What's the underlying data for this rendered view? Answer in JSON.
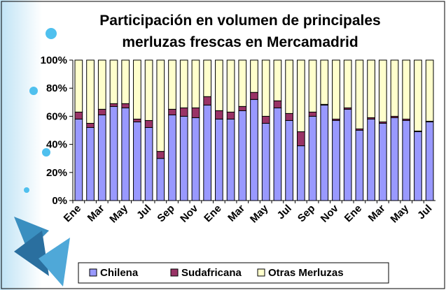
{
  "chart_data": {
    "type": "stacked_bar_100",
    "title": "Participación en volumen de principales merluzas frescas en Mercamadrid",
    "categories": [
      "Ene",
      null,
      "Mar",
      null,
      "May",
      null,
      "Jul",
      null,
      "Sep",
      null,
      "Nov",
      null,
      "Ene",
      null,
      "Mar",
      null,
      "May",
      null,
      "Jul",
      null,
      "Sep",
      null,
      "Nov",
      null,
      "Ene",
      null,
      "Mar",
      null,
      "May",
      null,
      "Jul"
    ],
    "series": [
      {
        "name": "Chilena",
        "color": "#9999ff",
        "values": [
          58,
          52,
          61,
          67,
          66,
          56,
          52,
          30,
          61,
          60,
          59,
          68,
          58,
          58,
          64,
          72,
          55,
          66,
          57,
          39,
          60,
          68,
          57,
          65,
          50,
          58,
          55,
          59,
          57,
          49,
          56
        ]
      },
      {
        "name": "Sudafricana",
        "color": "#993366",
        "values": [
          5,
          3,
          4,
          2,
          3,
          2,
          5,
          5,
          4,
          6,
          7,
          6,
          6,
          5,
          3,
          5,
          5,
          5,
          5,
          10,
          3,
          0.5,
          1,
          1,
          1,
          1,
          1,
          1,
          1,
          0.5,
          0.5
        ]
      },
      {
        "name": "Otras Merluzas",
        "color": "#ffffcc",
        "values": [
          37,
          45,
          35,
          31,
          31,
          42,
          43,
          65,
          35,
          34,
          34,
          26,
          36,
          37,
          33,
          23,
          40,
          29,
          38,
          51,
          37,
          31.5,
          42,
          34,
          49,
          41,
          44,
          40,
          42,
          50.5,
          43.5
        ]
      }
    ],
    "ylim": [
      0,
      100
    ],
    "yticks": [
      {
        "value": 0,
        "label": "0%"
      },
      {
        "value": 20,
        "label": "20%"
      },
      {
        "value": 40,
        "label": "40%"
      },
      {
        "value": 60,
        "label": "60%"
      },
      {
        "value": 80,
        "label": "80%"
      },
      {
        "value": 100,
        "label": "100%"
      }
    ],
    "legend": "bottom"
  }
}
